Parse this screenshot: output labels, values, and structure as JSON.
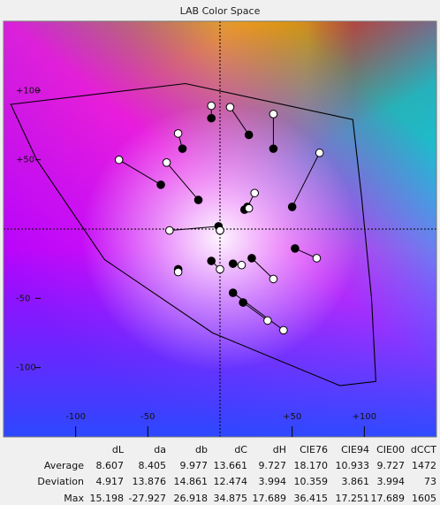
{
  "window": {
    "title": "LAB Color Space"
  },
  "chart_data": {
    "type": "scatter",
    "title": "LAB Color Space",
    "xlim": [
      -150,
      150
    ],
    "ylim": [
      -150,
      150
    ],
    "x_ticks": [
      -100,
      -50,
      50,
      100
    ],
    "y_ticks": [
      100,
      50,
      -50,
      -100
    ],
    "x_tick_labels": [
      "-100",
      "-50",
      "+50",
      "+100"
    ],
    "y_tick_labels": [
      "+100",
      "+50",
      "-50",
      "-100"
    ],
    "gamut_polygon": [
      [
        -145,
        90
      ],
      [
        -24,
        105
      ],
      [
        92,
        79
      ],
      [
        98,
        24
      ],
      [
        105,
        -50
      ],
      [
        108,
        -110
      ],
      [
        83,
        -113
      ],
      [
        -5,
        -75
      ],
      [
        -80,
        -22
      ],
      [
        -127,
        50
      ]
    ],
    "pairs": [
      {
        "measured": [
          -6,
          80
        ],
        "target": [
          -6,
          89
        ]
      },
      {
        "measured": [
          20,
          68
        ],
        "target": [
          7,
          88
        ]
      },
      {
        "measured": [
          37,
          58
        ],
        "target": [
          37,
          83
        ]
      },
      {
        "measured": [
          -26,
          58
        ],
        "target": [
          -29,
          69
        ]
      },
      {
        "measured": [
          -41,
          32
        ],
        "target": [
          -70,
          50
        ]
      },
      {
        "measured": [
          -15,
          21
        ],
        "target": [
          -37,
          48
        ]
      },
      {
        "measured": [
          50,
          16
        ],
        "target": [
          69,
          55
        ]
      },
      {
        "measured": [
          19,
          16
        ],
        "target": [
          24,
          26
        ]
      },
      {
        "measured": [
          17,
          14
        ],
        "target": [
          20,
          15
        ]
      },
      {
        "measured": [
          -1,
          2
        ],
        "target": [
          -35,
          -1
        ]
      },
      {
        "measured": [
          0,
          -1
        ],
        "target": [
          0,
          -1
        ]
      },
      {
        "measured": [
          52,
          -14
        ],
        "target": [
          67,
          -21
        ]
      },
      {
        "measured": [
          22,
          -21
        ],
        "target": [
          37,
          -36
        ]
      },
      {
        "measured": [
          9,
          -25
        ],
        "target": [
          15,
          -26
        ]
      },
      {
        "measured": [
          -6,
          -23
        ],
        "target": [
          0,
          -29
        ]
      },
      {
        "measured": [
          -29,
          -29
        ],
        "target": [
          -29,
          -31
        ]
      },
      {
        "measured": [
          16,
          -53
        ],
        "target": [
          33,
          -66
        ]
      },
      {
        "measured": [
          9,
          -46
        ],
        "target": [
          44,
          -73
        ]
      }
    ]
  },
  "stats": {
    "columns": [
      "dL",
      "da",
      "db",
      "dC",
      "dH",
      "CIE76",
      "CIE94",
      "CIE00",
      "dCCT"
    ],
    "rows": [
      {
        "label": "Average",
        "values": [
          "8.607",
          "8.405",
          "9.977",
          "13.661",
          "9.727",
          "18.170",
          "10.933",
          "9.727",
          "1472"
        ]
      },
      {
        "label": "Deviation",
        "values": [
          "4.917",
          "13.876",
          "14.861",
          "12.474",
          "3.994",
          "10.359",
          "3.861",
          "3.994",
          "73"
        ]
      },
      {
        "label": "Max",
        "values": [
          "15.198",
          "-27.927",
          "26.918",
          "34.875",
          "17.689",
          "36.415",
          "17.251",
          "17.689",
          "1605"
        ]
      }
    ]
  }
}
